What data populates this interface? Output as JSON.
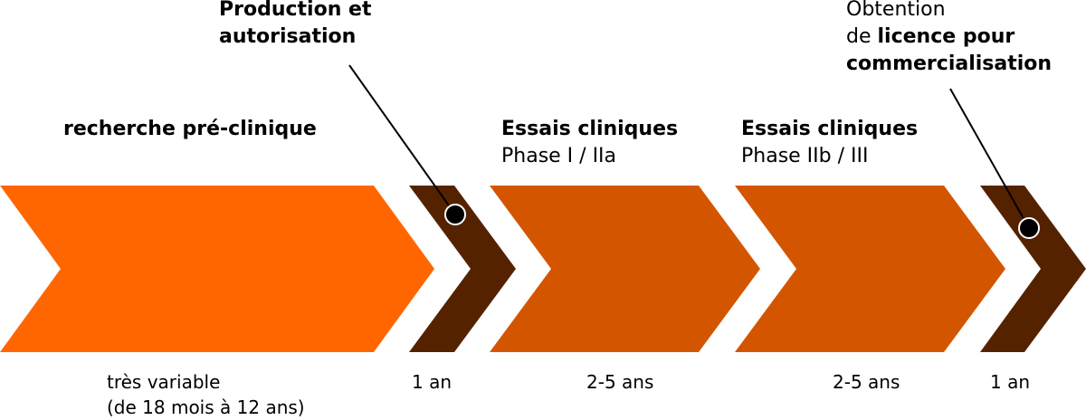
{
  "colors": {
    "preclinical": "#ff6600",
    "clinical": "#d45500",
    "milestone": "#552200",
    "marker": "#000000"
  },
  "labels": {
    "preclinical": "recherche pré-clinique",
    "production": {
      "line1": "Production et",
      "line2": "autorisation"
    },
    "phase1": {
      "title": "Essais cliniques",
      "sub": "Phase I / IIa"
    },
    "phase2": {
      "title": "Essais cliniques",
      "sub": "Phase IIb / III"
    },
    "licence": {
      "line1": "Obtention",
      "line2_normal": "de ",
      "line2_bold": "licence pour",
      "line3": "commercialisation"
    }
  },
  "durations": {
    "preclinical": {
      "line1": "très variable",
      "line2": "(de 18 mois à 12 ans)"
    },
    "production": "1 an",
    "phase1": "2-5 ans",
    "phase2": "2-5 ans",
    "licence": "1 an"
  }
}
